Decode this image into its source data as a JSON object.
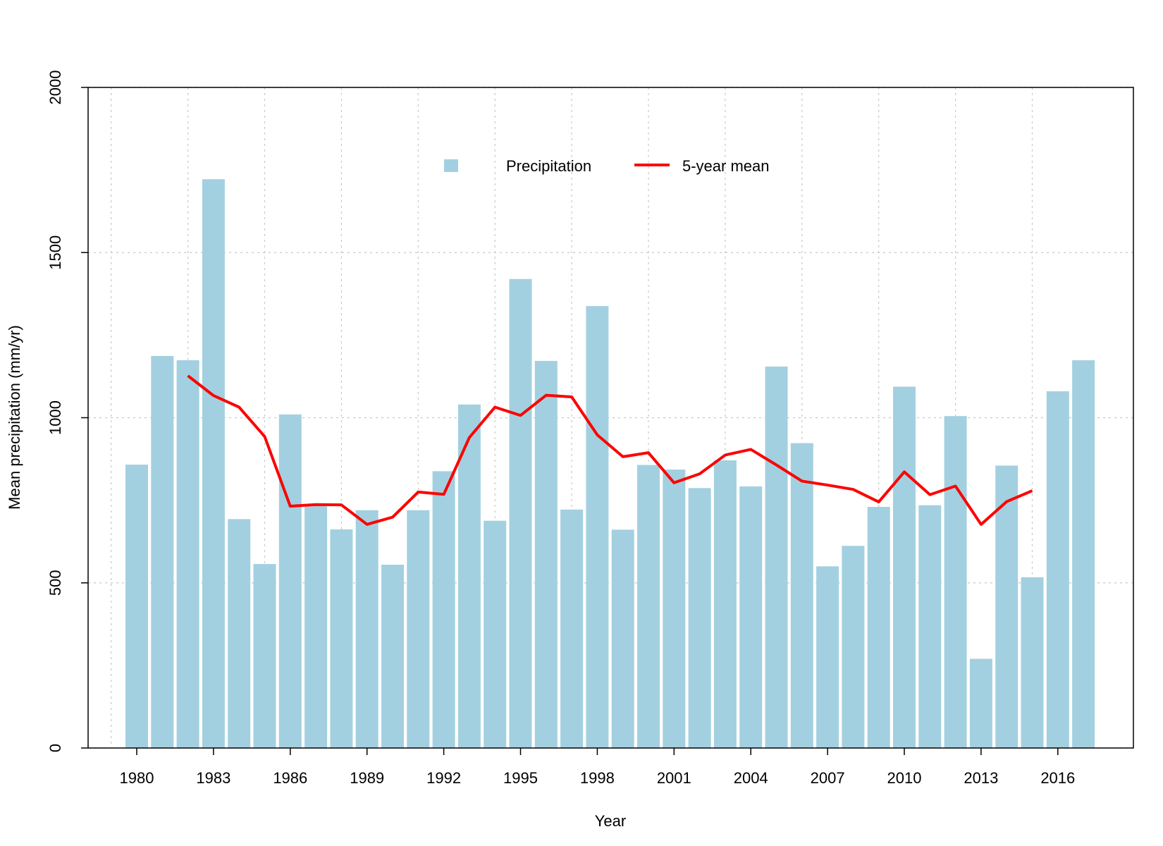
{
  "chart_data": {
    "type": "bar",
    "xlabel": "Year",
    "ylabel": "Mean precipitation (mm/yr)",
    "ylim": [
      0,
      2000
    ],
    "yticks": [
      0,
      500,
      1000,
      1500,
      2000
    ],
    "xticks": [
      "1980",
      "1983",
      "1986",
      "1989",
      "1992",
      "1995",
      "1998",
      "2001",
      "2004",
      "2007",
      "2010",
      "2013",
      "2016"
    ],
    "grid": true,
    "legend_position": "top-center",
    "categories": [
      1980,
      1981,
      1982,
      1983,
      1984,
      1985,
      1986,
      1987,
      1988,
      1989,
      1990,
      1991,
      1992,
      1993,
      1994,
      1995,
      1996,
      1997,
      1998,
      1999,
      2000,
      2001,
      2002,
      2003,
      2004,
      2005,
      2006,
      2007,
      2008,
      2009,
      2010,
      2011,
      2012,
      2013,
      2014,
      2015,
      2016,
      2017
    ],
    "series": [
      {
        "name": "Precipitation",
        "type": "bar",
        "color": "#a3d0e0",
        "values": [
          858,
          1187,
          1174,
          1722,
          693,
          557,
          1010,
          734,
          662,
          720,
          555,
          720,
          838,
          1040,
          688,
          1420,
          1172,
          722,
          1338,
          661,
          857,
          843,
          787,
          871,
          792,
          1155,
          923,
          550,
          612,
          730,
          1094,
          735,
          1005,
          270,
          855,
          517,
          1080,
          1174
        ]
      },
      {
        "name": "5-year mean",
        "type": "line",
        "color": "#ff0000",
        "values": [
          null,
          null,
          1127,
          1067,
          1032,
          943,
          732,
          737,
          736,
          677,
          699,
          775,
          768,
          940,
          1032,
          1007,
          1068,
          1063,
          948,
          882,
          894,
          803,
          830,
          887,
          904,
          857,
          808,
          796,
          783,
          745,
          836,
          767,
          793,
          677,
          746,
          779,
          null,
          null
        ]
      }
    ]
  }
}
